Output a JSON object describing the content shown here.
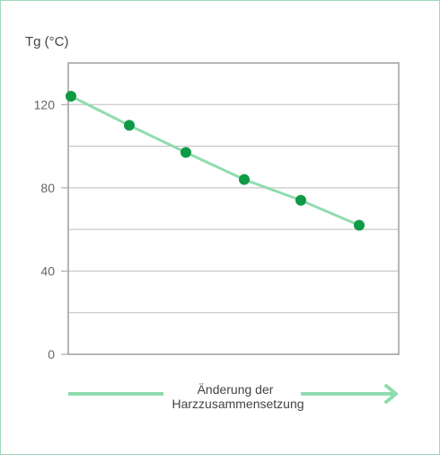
{
  "chart_data": {
    "type": "line",
    "title": "",
    "ylabel": "Tg (°C)",
    "xlabel_lines": [
      "Änderung der",
      "Harzzusammensetzung"
    ],
    "ylim": [
      0,
      140
    ],
    "yticks": [
      0,
      40,
      80,
      120
    ],
    "ytick_labels": [
      "0",
      "40",
      "80",
      "120"
    ],
    "gridlines": [
      20,
      40,
      60,
      80,
      100,
      120,
      140
    ],
    "x": [
      1,
      2,
      3,
      4,
      5,
      6
    ],
    "series": [
      {
        "values": [
          124,
          110,
          97,
          84,
          74,
          62
        ]
      }
    ],
    "grid": true,
    "colors": {
      "line": "#8fdcb0",
      "marker": "#0f9a45",
      "arrow": "#8fdcb0",
      "grid": "#bdbdbd",
      "axis": "#9e9e9e",
      "border": "#9fd9b9"
    }
  }
}
